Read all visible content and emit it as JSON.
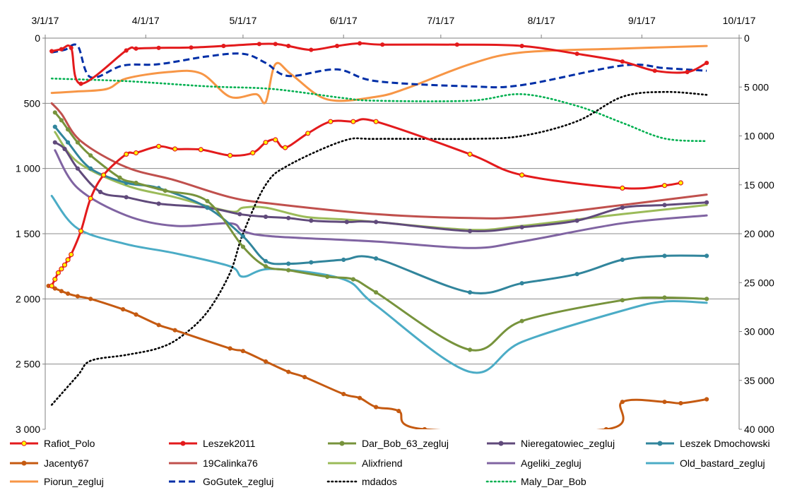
{
  "chart_data": {
    "type": "line",
    "x_axis": {
      "position": "top",
      "ticks": [
        "3/1/17",
        "4/1/17",
        "5/1/17",
        "6/1/17",
        "7/1/17",
        "8/1/17",
        "9/1/17",
        "10/1/17"
      ],
      "tick_dates": [
        "2017-03-01",
        "2017-04-01",
        "2017-05-01",
        "2017-06-01",
        "2017-07-01",
        "2017-08-01",
        "2017-09-01",
        "2017-10-01"
      ]
    },
    "y_left": {
      "ticks": [
        "0",
        "500",
        "1 000",
        "1 500",
        "2 000",
        "2 500",
        "3 000"
      ],
      "range": [
        0,
        3000
      ],
      "reversed": true
    },
    "y_right": {
      "ticks": [
        "0",
        "5 000",
        "10 000",
        "15 000",
        "20 000",
        "25 000",
        "30 000",
        "35 000",
        "40 000"
      ],
      "range": [
        0,
        40000
      ],
      "reversed": true
    },
    "grid": "horizontal",
    "legend_position": "bottom",
    "series": [
      {
        "name": "Rafiot_Polo",
        "color": "#e31a1c",
        "axis": "left",
        "marker": "yellow-dot",
        "dashed": false,
        "x": [
          "2017-03-03",
          "2017-03-04",
          "2017-03-05",
          "2017-03-06",
          "2017-03-07",
          "2017-03-08",
          "2017-03-09",
          "2017-03-12",
          "2017-03-15",
          "2017-03-19",
          "2017-03-26",
          "2017-03-29",
          "2017-04-05",
          "2017-04-10",
          "2017-04-18",
          "2017-04-27",
          "2017-05-04",
          "2017-05-08",
          "2017-05-11",
          "2017-05-14",
          "2017-05-21",
          "2017-05-28",
          "2017-06-04",
          "2017-06-11",
          "2017-07-10",
          "2017-07-26",
          "2017-08-26",
          "2017-09-08",
          "2017-09-13"
        ],
        "y": [
          1900,
          1850,
          1800,
          1770,
          1740,
          1700,
          1660,
          1480,
          1230,
          1050,
          890,
          880,
          830,
          850,
          855,
          900,
          880,
          800,
          780,
          840,
          730,
          640,
          640,
          640,
          890,
          1050,
          1150,
          1130,
          1110
        ]
      },
      {
        "name": "Leszek2011",
        "color": "#e31a1c",
        "axis": "left",
        "marker": "red-dot",
        "dashed": false,
        "x": [
          "2017-03-03",
          "2017-03-06",
          "2017-03-09",
          "2017-03-12",
          "2017-03-26",
          "2017-03-29",
          "2017-04-05",
          "2017-04-15",
          "2017-04-25",
          "2017-05-06",
          "2017-05-11",
          "2017-05-15",
          "2017-05-22",
          "2017-05-30",
          "2017-06-06",
          "2017-06-13",
          "2017-07-06",
          "2017-07-26",
          "2017-08-12",
          "2017-08-26",
          "2017-09-05",
          "2017-09-15",
          "2017-09-21"
        ],
        "y": [
          100,
          85,
          75,
          350,
          95,
          80,
          75,
          72,
          60,
          45,
          45,
          60,
          90,
          60,
          40,
          50,
          50,
          60,
          120,
          180,
          250,
          260,
          190
        ]
      },
      {
        "name": "Dar_Bob_63_zegluj",
        "color": "#77933c",
        "axis": "left",
        "marker": "green-dot",
        "dashed": false,
        "x": [
          "2017-03-04",
          "2017-03-06",
          "2017-03-08",
          "2017-03-11",
          "2017-03-15",
          "2017-03-24",
          "2017-03-29",
          "2017-04-07",
          "2017-04-20",
          "2017-05-01",
          "2017-05-08",
          "2017-05-15",
          "2017-05-27",
          "2017-06-04",
          "2017-06-11",
          "2017-07-10",
          "2017-07-26",
          "2017-08-26",
          "2017-09-08",
          "2017-09-21"
        ],
        "y": [
          570,
          630,
          700,
          800,
          900,
          1070,
          1110,
          1170,
          1250,
          1600,
          1750,
          1780,
          1830,
          1850,
          1950,
          2390,
          2170,
          2010,
          1990,
          2000
        ]
      },
      {
        "name": "Nieregatowiec_zegluj",
        "color": "#604a7b",
        "axis": "left",
        "marker": "purple-dot",
        "dashed": false,
        "x": [
          "2017-03-04",
          "2017-03-07",
          "2017-03-11",
          "2017-03-18",
          "2017-03-26",
          "2017-04-05",
          "2017-04-20",
          "2017-04-30",
          "2017-05-08",
          "2017-05-15",
          "2017-05-22",
          "2017-06-02",
          "2017-06-11",
          "2017-07-10",
          "2017-07-26",
          "2017-08-12",
          "2017-08-26",
          "2017-09-08",
          "2017-09-21"
        ],
        "y": [
          800,
          850,
          1000,
          1180,
          1220,
          1270,
          1300,
          1350,
          1370,
          1380,
          1400,
          1410,
          1410,
          1480,
          1450,
          1400,
          1300,
          1280,
          1260
        ]
      },
      {
        "name": "Leszek Dmochowski",
        "color": "#31859c",
        "axis": "left",
        "marker": "teal-dot",
        "dashed": false,
        "x": [
          "2017-03-04",
          "2017-03-08",
          "2017-03-15",
          "2017-03-26",
          "2017-04-05",
          "2017-04-20",
          "2017-05-01",
          "2017-05-08",
          "2017-05-15",
          "2017-05-22",
          "2017-06-01",
          "2017-06-11",
          "2017-07-10",
          "2017-07-26",
          "2017-08-12",
          "2017-08-26",
          "2017-09-08",
          "2017-09-21"
        ],
        "y": [
          680,
          800,
          1000,
          1110,
          1150,
          1300,
          1520,
          1710,
          1730,
          1720,
          1700,
          1690,
          1950,
          1880,
          1810,
          1700,
          1670,
          1670
        ]
      },
      {
        "name": "Jacenty67",
        "color": "#c55a11",
        "axis": "left",
        "marker": "orange-dot",
        "dashed": false,
        "x": [
          "2017-03-02",
          "2017-03-04",
          "2017-03-06",
          "2017-03-08",
          "2017-03-11",
          "2017-03-15",
          "2017-03-25",
          "2017-03-29",
          "2017-04-05",
          "2017-04-10",
          "2017-04-27",
          "2017-05-01",
          "2017-05-08",
          "2017-05-15",
          "2017-05-20",
          "2017-06-01",
          "2017-06-06",
          "2017-06-11",
          "2017-06-18",
          "2017-06-26",
          "2017-08-21",
          "2017-08-26",
          "2017-09-08",
          "2017-09-13",
          "2017-09-21"
        ],
        "y": [
          1900,
          1920,
          1940,
          1960,
          1980,
          2000,
          2080,
          2120,
          2200,
          2240,
          2380,
          2400,
          2480,
          2560,
          2600,
          2730,
          2760,
          2830,
          2860,
          3000,
          3000,
          2790,
          2790,
          2800,
          2770
        ]
      },
      {
        "name": "19Calinka76",
        "color": "#c0504d",
        "axis": "left",
        "marker": "none",
        "dashed": false,
        "x": [
          "2017-03-03",
          "2017-03-06",
          "2017-03-12",
          "2017-03-26",
          "2017-04-10",
          "2017-04-27",
          "2017-05-10",
          "2017-06-11",
          "2017-07-10",
          "2017-07-26",
          "2017-08-26",
          "2017-09-21"
        ],
        "y": [
          500,
          580,
          790,
          990,
          1090,
          1220,
          1270,
          1350,
          1380,
          1370,
          1280,
          1200
        ]
      },
      {
        "name": "Alixfriend",
        "color": "#9bbb59",
        "axis": "left",
        "marker": "none",
        "dashed": false,
        "x": [
          "2017-03-04",
          "2017-03-11",
          "2017-03-26",
          "2017-04-10",
          "2017-04-27",
          "2017-05-01",
          "2017-05-08",
          "2017-05-20",
          "2017-06-01",
          "2017-06-11",
          "2017-07-10",
          "2017-07-26",
          "2017-08-26",
          "2017-09-21"
        ],
        "y": [
          720,
          950,
          1130,
          1220,
          1330,
          1300,
          1300,
          1370,
          1390,
          1410,
          1470,
          1440,
          1350,
          1280
        ]
      },
      {
        "name": "Ageliki_zegluj",
        "color": "#8064a2",
        "axis": "left",
        "marker": "none",
        "dashed": false,
        "x": [
          "2017-03-04",
          "2017-03-11",
          "2017-03-26",
          "2017-04-10",
          "2017-04-27",
          "2017-05-01",
          "2017-05-10",
          "2017-06-11",
          "2017-07-10",
          "2017-07-26",
          "2017-08-26",
          "2017-09-21"
        ],
        "y": [
          860,
          1150,
          1360,
          1440,
          1420,
          1480,
          1520,
          1560,
          1610,
          1560,
          1420,
          1360
        ]
      },
      {
        "name": "Old_bastard_zegluj",
        "color": "#4bacc6",
        "axis": "left",
        "marker": "none",
        "dashed": false,
        "x": [
          "2017-03-03",
          "2017-03-11",
          "2017-03-26",
          "2017-04-10",
          "2017-04-27",
          "2017-05-01",
          "2017-05-10",
          "2017-06-01",
          "2017-06-11",
          "2017-07-10",
          "2017-07-26",
          "2017-08-26",
          "2017-09-08",
          "2017-09-21"
        ],
        "y": [
          1210,
          1460,
          1580,
          1650,
          1750,
          1830,
          1770,
          1850,
          2050,
          2560,
          2330,
          2090,
          2020,
          2030
        ]
      },
      {
        "name": "Piorun_zegluj",
        "color": "#f79646",
        "axis": "left",
        "marker": "none",
        "dashed": false,
        "x": [
          "2017-03-03",
          "2017-03-10",
          "2017-03-20",
          "2017-03-26",
          "2017-04-08",
          "2017-04-18",
          "2017-04-27",
          "2017-05-05",
          "2017-05-08",
          "2017-05-11",
          "2017-05-16",
          "2017-05-27",
          "2017-06-11",
          "2017-06-21",
          "2017-07-10",
          "2017-07-26",
          "2017-08-26",
          "2017-09-21"
        ],
        "y": [
          420,
          410,
          390,
          310,
          260,
          270,
          450,
          430,
          490,
          200,
          280,
          470,
          450,
          380,
          200,
          110,
          80,
          60
        ]
      },
      {
        "name": "GoGutek_zegluj",
        "color": "#002fa7",
        "axis": "left",
        "marker": "none",
        "dashed": true,
        "x": [
          "2017-03-03",
          "2017-03-07",
          "2017-03-11",
          "2017-03-15",
          "2017-03-25",
          "2017-04-05",
          "2017-04-20",
          "2017-05-01",
          "2017-05-08",
          "2017-05-15",
          "2017-05-30",
          "2017-06-11",
          "2017-07-10",
          "2017-07-26",
          "2017-08-26",
          "2017-09-08",
          "2017-09-21"
        ],
        "y": [
          110,
          90,
          60,
          300,
          210,
          200,
          140,
          120,
          190,
          290,
          240,
          330,
          370,
          360,
          210,
          230,
          250
        ]
      },
      {
        "name": "mdados",
        "color": "#000000",
        "axis": "right",
        "marker": "none",
        "dashed": true,
        "x": [
          "2017-03-03",
          "2017-03-11",
          "2017-03-15",
          "2017-03-26",
          "2017-04-05",
          "2017-04-12",
          "2017-04-20",
          "2017-04-27",
          "2017-05-01",
          "2017-05-08",
          "2017-05-15",
          "2017-06-01",
          "2017-06-11",
          "2017-07-10",
          "2017-07-26",
          "2017-08-12",
          "2017-08-26",
          "2017-09-08",
          "2017-09-21"
        ],
        "y": [
          37500,
          34500,
          33000,
          32400,
          31700,
          30500,
          28000,
          24000,
          20000,
          15000,
          13000,
          10500,
          10300,
          10300,
          10000,
          8500,
          6000,
          5500,
          5800
        ]
      },
      {
        "name": "Maly_Dar_Bob",
        "color": "#00b050",
        "axis": "left",
        "marker": "none",
        "dashed": true,
        "x": [
          "2017-03-03",
          "2017-03-26",
          "2017-04-20",
          "2017-05-10",
          "2017-06-01",
          "2017-06-11",
          "2017-07-10",
          "2017-07-26",
          "2017-08-12",
          "2017-08-26",
          "2017-09-08",
          "2017-09-21"
        ],
        "y": [
          310,
          330,
          370,
          390,
          460,
          480,
          480,
          430,
          520,
          650,
          770,
          790
        ]
      }
    ]
  }
}
